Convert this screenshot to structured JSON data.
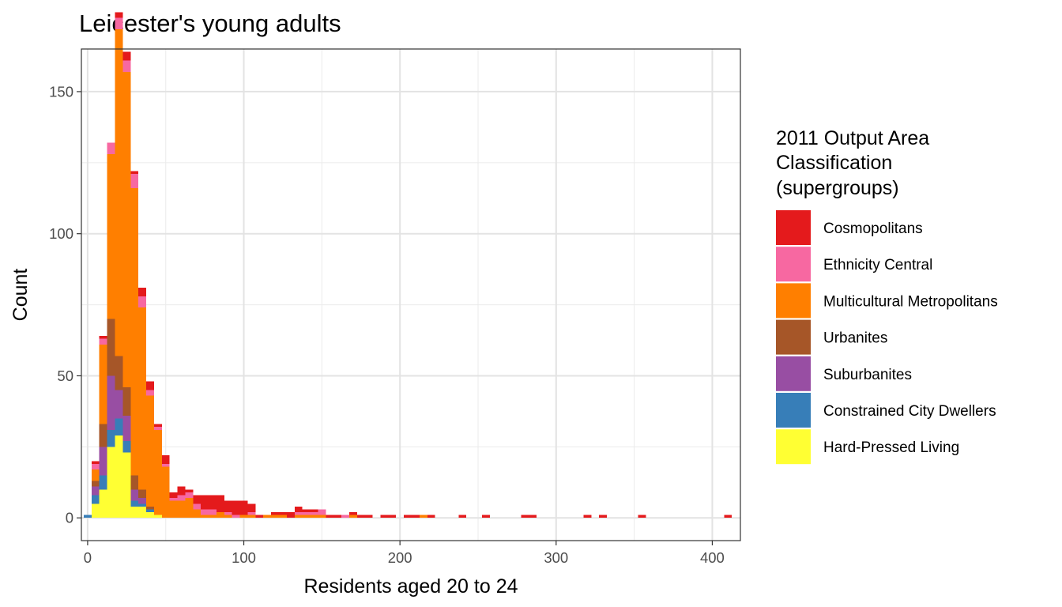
{
  "chart_data": {
    "type": "bar",
    "subtype": "stacked-histogram",
    "title": "Leicester's young adults",
    "xlabel": "Residents aged 20 to 24",
    "ylabel": "Count",
    "xlim": [
      -4,
      418
    ],
    "ylim": [
      -8,
      165
    ],
    "bin_width": 5,
    "x_ticks": [
      0,
      100,
      200,
      300,
      400
    ],
    "y_ticks": [
      0,
      50,
      100,
      150
    ],
    "x_minor_ticks": [
      50,
      150,
      250,
      350
    ],
    "y_minor_ticks": [
      25,
      75,
      125
    ],
    "grid": true,
    "legend": {
      "title_lines": [
        "2011 Output Area",
        "Classification",
        "(supergroups)"
      ],
      "position": "right"
    },
    "series": [
      {
        "name": "Cosmopolitans",
        "color": "#e41a1c"
      },
      {
        "name": "Ethnicity Central",
        "color": "#f768a1"
      },
      {
        "name": "Multicultural Metropolitans",
        "color": "#ff7f00"
      },
      {
        "name": "Urbanites",
        "color": "#a65628"
      },
      {
        "name": "Suburbanites",
        "color": "#984ea3"
      },
      {
        "name": "Constrained City Dwellers",
        "color": "#377eb8"
      },
      {
        "name": "Hard-Pressed Living",
        "color": "#ffff33"
      }
    ],
    "stack_order": "Hard-Pressed Living at bottom, Cosmopolitans at top",
    "bins": [
      {
        "x": 0,
        "values": [
          0,
          0,
          0,
          0,
          0,
          1,
          0
        ]
      },
      {
        "x": 5,
        "values": [
          1,
          2,
          4,
          2,
          3,
          3,
          5
        ]
      },
      {
        "x": 10,
        "values": [
          1,
          2,
          28,
          8,
          10,
          5,
          10
        ]
      },
      {
        "x": 15,
        "values": [
          0,
          4,
          58,
          20,
          19,
          6,
          25
        ]
      },
      {
        "x": 20,
        "values": [
          2,
          4,
          115,
          12,
          10,
          6,
          29
        ]
      },
      {
        "x": 25,
        "values": [
          3,
          4,
          111,
          10,
          9,
          4,
          23
        ]
      },
      {
        "x": 30,
        "values": [
          1,
          5,
          101,
          5,
          4,
          2,
          4
        ]
      },
      {
        "x": 35,
        "values": [
          3,
          4,
          64,
          3,
          2,
          1,
          4
        ]
      },
      {
        "x": 40,
        "values": [
          3,
          2,
          39,
          1,
          0,
          1,
          2
        ]
      },
      {
        "x": 45,
        "values": [
          1,
          1,
          30,
          0,
          0,
          0,
          1
        ]
      },
      {
        "x": 50,
        "values": [
          3,
          1,
          18,
          0,
          0,
          0,
          0
        ]
      },
      {
        "x": 55,
        "values": [
          2,
          1,
          6,
          0,
          0,
          0,
          0
        ]
      },
      {
        "x": 60,
        "values": [
          3,
          2,
          6,
          0,
          0,
          0,
          0
        ]
      },
      {
        "x": 65,
        "values": [
          1,
          2,
          7,
          0,
          0,
          0,
          0
        ]
      },
      {
        "x": 70,
        "values": [
          3,
          2,
          3,
          0,
          0,
          0,
          0
        ]
      },
      {
        "x": 75,
        "values": [
          5,
          2,
          1,
          0,
          0,
          0,
          0
        ]
      },
      {
        "x": 80,
        "values": [
          5,
          2,
          1,
          0,
          0,
          0,
          0
        ]
      },
      {
        "x": 85,
        "values": [
          6,
          0,
          2,
          0,
          0,
          0,
          0
        ]
      },
      {
        "x": 90,
        "values": [
          4,
          1,
          1,
          0,
          0,
          0,
          0
        ]
      },
      {
        "x": 95,
        "values": [
          5,
          1,
          0,
          0,
          0,
          0,
          0
        ]
      },
      {
        "x": 100,
        "values": [
          5,
          0,
          1,
          0,
          0,
          0,
          0
        ]
      },
      {
        "x": 105,
        "values": [
          3,
          1,
          1,
          0,
          0,
          0,
          0
        ]
      },
      {
        "x": 110,
        "values": [
          1,
          0,
          0,
          0,
          0,
          0,
          0
        ]
      },
      {
        "x": 115,
        "values": [
          0,
          0,
          1,
          0,
          0,
          0,
          0
        ]
      },
      {
        "x": 120,
        "values": [
          1,
          0,
          1,
          0,
          0,
          0,
          0
        ]
      },
      {
        "x": 125,
        "values": [
          1,
          0,
          1,
          0,
          0,
          0,
          0
        ]
      },
      {
        "x": 130,
        "values": [
          2,
          0,
          0,
          0,
          0,
          0,
          0
        ]
      },
      {
        "x": 135,
        "values": [
          2,
          1,
          1,
          0,
          0,
          0,
          0
        ]
      },
      {
        "x": 140,
        "values": [
          1,
          1,
          1,
          0,
          0,
          0,
          0
        ]
      },
      {
        "x": 145,
        "values": [
          1,
          1,
          1,
          0,
          0,
          0,
          0
        ]
      },
      {
        "x": 150,
        "values": [
          0,
          2,
          1,
          0,
          0,
          0,
          0
        ]
      },
      {
        "x": 155,
        "values": [
          1,
          0,
          0,
          0,
          0,
          0,
          0
        ]
      },
      {
        "x": 160,
        "values": [
          1,
          0,
          0,
          0,
          0,
          0,
          0
        ]
      },
      {
        "x": 165,
        "values": [
          0,
          1,
          0,
          0,
          0,
          0,
          0
        ]
      },
      {
        "x": 170,
        "values": [
          1,
          0,
          1,
          0,
          0,
          0,
          0
        ]
      },
      {
        "x": 175,
        "values": [
          1,
          0,
          0,
          0,
          0,
          0,
          0
        ]
      },
      {
        "x": 180,
        "values": [
          1,
          0,
          0,
          0,
          0,
          0,
          0
        ]
      },
      {
        "x": 190,
        "values": [
          1,
          0,
          0,
          0,
          0,
          0,
          0
        ]
      },
      {
        "x": 195,
        "values": [
          1,
          0,
          0,
          0,
          0,
          0,
          0
        ]
      },
      {
        "x": 205,
        "values": [
          1,
          0,
          0,
          0,
          0,
          0,
          0
        ]
      },
      {
        "x": 210,
        "values": [
          1,
          0,
          0,
          0,
          0,
          0,
          0
        ]
      },
      {
        "x": 215,
        "values": [
          0,
          0,
          1,
          0,
          0,
          0,
          0
        ]
      },
      {
        "x": 220,
        "values": [
          1,
          0,
          0,
          0,
          0,
          0,
          0
        ]
      },
      {
        "x": 240,
        "values": [
          1,
          0,
          0,
          0,
          0,
          0,
          0
        ]
      },
      {
        "x": 255,
        "values": [
          1,
          0,
          0,
          0,
          0,
          0,
          0
        ]
      },
      {
        "x": 280,
        "values": [
          1,
          0,
          0,
          0,
          0,
          0,
          0
        ]
      },
      {
        "x": 285,
        "values": [
          1,
          0,
          0,
          0,
          0,
          0,
          0
        ]
      },
      {
        "x": 320,
        "values": [
          1,
          0,
          0,
          0,
          0,
          0,
          0
        ]
      },
      {
        "x": 330,
        "values": [
          1,
          0,
          0,
          0,
          0,
          0,
          0
        ]
      },
      {
        "x": 355,
        "values": [
          1,
          0,
          0,
          0,
          0,
          0,
          0
        ]
      },
      {
        "x": 410,
        "values": [
          1,
          0,
          0,
          0,
          0,
          0,
          0
        ]
      }
    ]
  }
}
